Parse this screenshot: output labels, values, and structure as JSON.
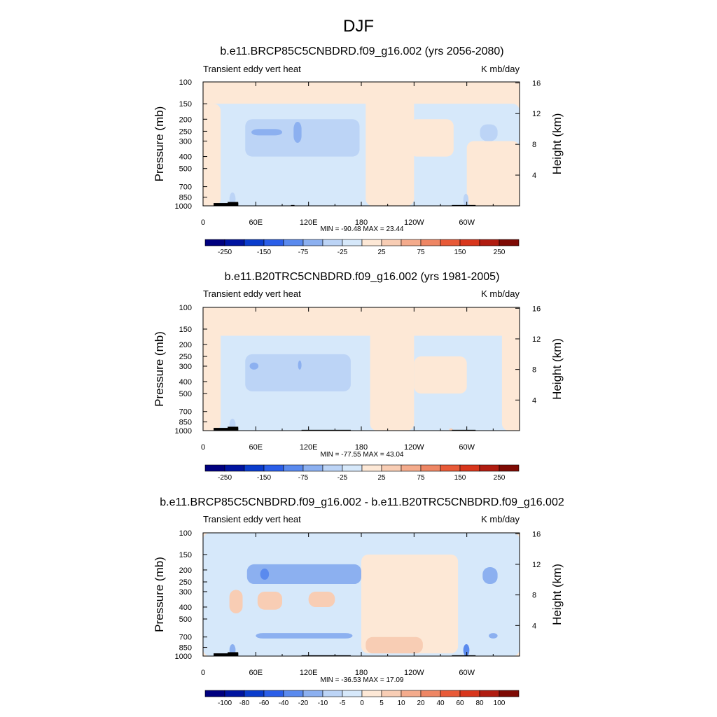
{
  "figure": {
    "title": "DJF"
  },
  "colors": {
    "absolute_scale": [
      "#00007f",
      "#0014a0",
      "#0a3ccc",
      "#2a5ee8",
      "#5a8aee",
      "#8cb0f0",
      "#bcd4f6",
      "#d6e8fa",
      "#fde8d6",
      "#f8cdb4",
      "#f4ab8c",
      "#ee8664",
      "#e85a38",
      "#d8361c",
      "#b01c10",
      "#7e0a04"
    ],
    "diff_scale": [
      "#00007f",
      "#0014a0",
      "#0a3ccc",
      "#2a5ee8",
      "#5a8aee",
      "#8cb0f0",
      "#bcd4f6",
      "#d6e8fa",
      "#fde8d6",
      "#f8cdb4",
      "#f4ab8c",
      "#ee8664",
      "#e85a38",
      "#d8361c",
      "#b01c10",
      "#7e0a04"
    ],
    "topography": "#000000"
  },
  "chart_data": [
    {
      "type": "heatmap",
      "title": "b.e11.BRCP85C5CNBDRD.f09_g16.002 (yrs 2056-2080)",
      "left_subtitle": "Transient eddy vert heat",
      "right_subtitle": "K mb/day",
      "ylabel": "Pressure (mb)",
      "ylabel_right": "Height (km)",
      "x_ticks": [
        "0",
        "60E",
        "120E",
        "180",
        "120W",
        "60W"
      ],
      "x_tick_values": [
        0,
        60,
        120,
        180,
        240,
        300
      ],
      "xlim": [
        0,
        360
      ],
      "y_ticks": [
        "100",
        "150",
        "200",
        "250",
        "300",
        "400",
        "500",
        "700",
        "850",
        "1000"
      ],
      "y_tick_values": [
        100,
        150,
        200,
        250,
        300,
        400,
        500,
        700,
        850,
        1000
      ],
      "ylim": [
        1000,
        100
      ],
      "y_right_ticks": [
        "4",
        "8",
        "12",
        "16"
      ],
      "y_right_tick_values": [
        4,
        8,
        12,
        16
      ],
      "stats": "MIN = -90.48  MAX =  23.44",
      "colorbar_labels": [
        "-250",
        "-150",
        "-75",
        "-25",
        "25",
        "75",
        "150",
        "250"
      ],
      "background_value": 10,
      "regions": [
        {
          "lon": [
            0,
            360
          ],
          "p": [
            150,
            1000
          ],
          "value": -10
        },
        {
          "lon": [
            0,
            20
          ],
          "p": [
            150,
            1000
          ],
          "value": 10
        },
        {
          "lon": [
            185,
            240
          ],
          "p": [
            100,
            1000
          ],
          "value": 10
        },
        {
          "lon": [
            235,
            285
          ],
          "p": [
            200,
            400
          ],
          "value": 10
        },
        {
          "lon": [
            300,
            360
          ],
          "p": [
            300,
            1000
          ],
          "value": 10
        },
        {
          "lon": [
            48,
            178
          ],
          "p": [
            200,
            400
          ],
          "value": -35
        },
        {
          "lon": [
            55,
            90
          ],
          "p": [
            240,
            270
          ],
          "value": -60
        },
        {
          "lon": [
            103,
            112
          ],
          "p": [
            210,
            310
          ],
          "value": -60
        },
        {
          "lon": [
            315,
            335
          ],
          "p": [
            220,
            300
          ],
          "value": -35
        },
        {
          "lon": [
            30,
            37
          ],
          "p": [
            780,
            1000
          ],
          "value": -35
        },
        {
          "lon": [
            296,
            302
          ],
          "p": [
            800,
            1000
          ],
          "value": -35
        }
      ],
      "topography": [
        {
          "lon": [
            12,
            40
          ],
          "p": [
            950,
            1000
          ]
        },
        {
          "lon": [
            28,
            40
          ],
          "p": [
            930,
            1000
          ]
        },
        {
          "lon": [
            100,
            104
          ],
          "p": [
            985,
            1000
          ]
        },
        {
          "lon": [
            283,
            310
          ],
          "p": [
            985,
            1000
          ]
        }
      ]
    },
    {
      "type": "heatmap",
      "title": "b.e11.B20TRC5CNBDRD.f09_g16.002 (yrs 1981-2005)",
      "left_subtitle": "Transient eddy vert heat",
      "right_subtitle": "K mb/day",
      "ylabel": "Pressure (mb)",
      "ylabel_right": "Height (km)",
      "x_ticks": [
        "0",
        "60E",
        "120E",
        "180",
        "120W",
        "60W"
      ],
      "x_tick_values": [
        0,
        60,
        120,
        180,
        240,
        300
      ],
      "xlim": [
        0,
        360
      ],
      "y_ticks": [
        "100",
        "150",
        "200",
        "250",
        "300",
        "400",
        "500",
        "700",
        "850",
        "1000"
      ],
      "y_tick_values": [
        100,
        150,
        200,
        250,
        300,
        400,
        500,
        700,
        850,
        1000
      ],
      "ylim": [
        1000,
        100
      ],
      "y_right_ticks": [
        "4",
        "8",
        "12",
        "16"
      ],
      "y_right_tick_values": [
        4,
        8,
        12,
        16
      ],
      "stats": "MIN = -77.55  MAX =  43.04",
      "colorbar_labels": [
        "-250",
        "-150",
        "-75",
        "-25",
        "25",
        "75",
        "150",
        "250"
      ],
      "background_value": 10,
      "regions": [
        {
          "lon": [
            0,
            360
          ],
          "p": [
            170,
            1000
          ],
          "value": -10
        },
        {
          "lon": [
            0,
            20
          ],
          "p": [
            150,
            1000
          ],
          "value": 10
        },
        {
          "lon": [
            190,
            240
          ],
          "p": [
            100,
            1000
          ],
          "value": 10
        },
        {
          "lon": [
            240,
            300
          ],
          "p": [
            250,
            500
          ],
          "value": 10
        },
        {
          "lon": [
            340,
            360
          ],
          "p": [
            100,
            1000
          ],
          "value": 10
        },
        {
          "lon": [
            48,
            168
          ],
          "p": [
            240,
            480
          ],
          "value": -35
        },
        {
          "lon": [
            53,
            63
          ],
          "p": [
            280,
            320
          ],
          "value": -60
        },
        {
          "lon": [
            108,
            112
          ],
          "p": [
            270,
            320
          ],
          "value": -60
        },
        {
          "lon": [
            30,
            37
          ],
          "p": [
            800,
            1000
          ],
          "value": -35
        },
        {
          "lon": [
            280,
            284
          ],
          "p": [
            960,
            1000
          ],
          "value": 40
        }
      ],
      "topography": [
        {
          "lon": [
            12,
            40
          ],
          "p": [
            950,
            1000
          ]
        },
        {
          "lon": [
            28,
            40
          ],
          "p": [
            930,
            1000
          ]
        },
        {
          "lon": [
            112,
            168
          ],
          "p": [
            985,
            1000
          ]
        },
        {
          "lon": [
            283,
            310
          ],
          "p": [
            985,
            1000
          ]
        }
      ]
    },
    {
      "type": "heatmap",
      "title": "b.e11.BRCP85C5CNBDRD.f09_g16.002 - b.e11.B20TRC5CNBDRD.f09_g16.002",
      "left_subtitle": "Transient eddy vert heat",
      "right_subtitle": "K mb/day",
      "ylabel": "Pressure (mb)",
      "ylabel_right": "Height (km)",
      "x_ticks": [
        "0",
        "60E",
        "120E",
        "180",
        "120W",
        "60W"
      ],
      "x_tick_values": [
        0,
        60,
        120,
        180,
        240,
        300
      ],
      "xlim": [
        0,
        360
      ],
      "y_ticks": [
        "100",
        "150",
        "200",
        "250",
        "300",
        "400",
        "500",
        "700",
        "850",
        "1000"
      ],
      "y_tick_values": [
        100,
        150,
        200,
        250,
        300,
        400,
        500,
        700,
        850,
        1000
      ],
      "ylim": [
        1000,
        100
      ],
      "y_right_ticks": [
        "4",
        "8",
        "12",
        "16"
      ],
      "y_right_tick_values": [
        4,
        8,
        12,
        16
      ],
      "stats": "MIN = -36.53  MAX =  17.09",
      "colorbar_labels": [
        "-100",
        "-80",
        "-60",
        "-40",
        "-20",
        "-10",
        "-5",
        "0",
        "5",
        "10",
        "20",
        "40",
        "60",
        "80",
        "100"
      ],
      "background_value": 2,
      "regions": [
        {
          "lon": [
            0,
            360
          ],
          "p": [
            100,
            1000
          ],
          "value": -3
        },
        {
          "lon": [
            180,
            290
          ],
          "p": [
            150,
            950
          ],
          "value": 3
        },
        {
          "lon": [
            185,
            250
          ],
          "p": [
            700,
            950
          ],
          "value": 8
        },
        {
          "lon": [
            30,
            45
          ],
          "p": [
            290,
            450
          ],
          "value": 8
        },
        {
          "lon": [
            62,
            90
          ],
          "p": [
            300,
            420
          ],
          "value": 8
        },
        {
          "lon": [
            120,
            150
          ],
          "p": [
            300,
            400
          ],
          "value": 8
        },
        {
          "lon": [
            50,
            180
          ],
          "p": [
            180,
            260
          ],
          "value": -15
        },
        {
          "lon": [
            65,
            75
          ],
          "p": [
            195,
            240
          ],
          "value": -25
        },
        {
          "lon": [
            318,
            335
          ],
          "p": [
            190,
            260
          ],
          "value": -15
        },
        {
          "lon": [
            60,
            170
          ],
          "p": [
            650,
            720
          ],
          "value": -15
        },
        {
          "lon": [
            325,
            335
          ],
          "p": [
            650,
            720
          ],
          "value": -15
        },
        {
          "lon": [
            296,
            303
          ],
          "p": [
            800,
            1000
          ],
          "value": -25
        },
        {
          "lon": [
            30,
            37
          ],
          "p": [
            800,
            1000
          ],
          "value": -15
        }
      ],
      "topography": [
        {
          "lon": [
            12,
            40
          ],
          "p": [
            950,
            1000
          ]
        },
        {
          "lon": [
            28,
            40
          ],
          "p": [
            930,
            1000
          ]
        },
        {
          "lon": [
            112,
            168
          ],
          "p": [
            985,
            1000
          ]
        },
        {
          "lon": [
            283,
            310
          ],
          "p": [
            985,
            1000
          ]
        }
      ]
    }
  ]
}
